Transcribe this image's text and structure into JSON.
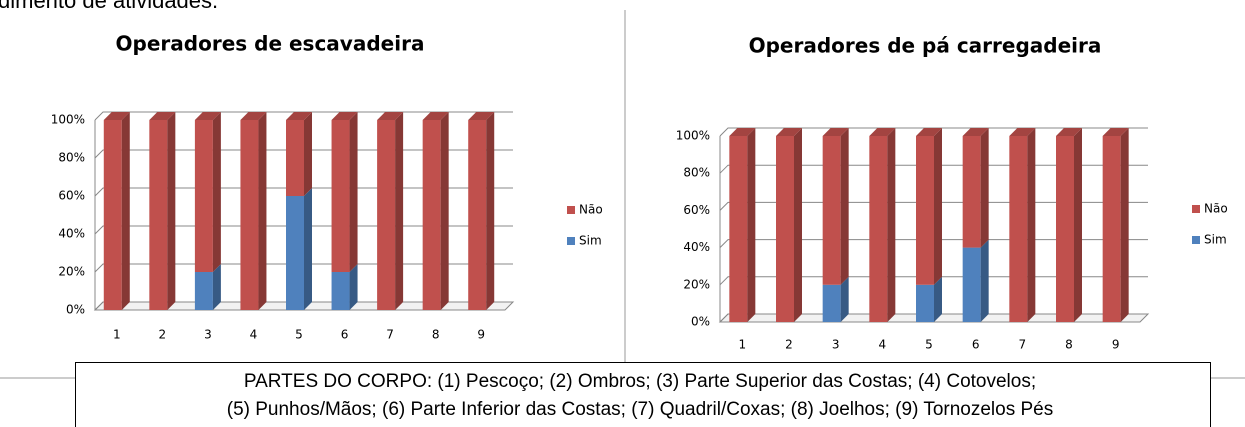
{
  "top_text": "dimento de atividades.",
  "chart_data": [
    {
      "type": "bar",
      "stacked": true,
      "title": "Operadores de escavadeira",
      "categories": [
        "1",
        "2",
        "3",
        "4",
        "5",
        "6",
        "7",
        "8",
        "9"
      ],
      "series": [
        {
          "name": "Sim",
          "color": "#4f81bd",
          "values": [
            0,
            0,
            20,
            0,
            60,
            20,
            0,
            0,
            0
          ]
        },
        {
          "name": "Não",
          "color": "#c0504d",
          "values": [
            100,
            100,
            80,
            100,
            40,
            80,
            100,
            100,
            100
          ]
        }
      ],
      "ylim": [
        0,
        100
      ],
      "yticks": [
        {
          "value": 0,
          "label": "0%"
        },
        {
          "value": 20,
          "label": "20%"
        },
        {
          "value": 40,
          "label": "40%"
        },
        {
          "value": 60,
          "label": "60%"
        },
        {
          "value": 80,
          "label": "80%"
        },
        {
          "value": 100,
          "label": "100%"
        }
      ],
      "grid": true,
      "legend": "right"
    },
    {
      "type": "bar",
      "stacked": true,
      "title": "Operadores de pá carregadeira",
      "categories": [
        "1",
        "2",
        "3",
        "4",
        "5",
        "6",
        "7",
        "8",
        "9"
      ],
      "series": [
        {
          "name": "Sim",
          "color": "#4f81bd",
          "values": [
            0,
            0,
            20,
            0,
            20,
            40,
            0,
            0,
            0
          ]
        },
        {
          "name": "Não",
          "color": "#c0504d",
          "values": [
            100,
            100,
            80,
            100,
            80,
            60,
            100,
            100,
            100
          ]
        }
      ],
      "ylim": [
        0,
        100
      ],
      "yticks": [
        {
          "value": 0,
          "label": "0%"
        },
        {
          "value": 20,
          "label": "20%"
        },
        {
          "value": 40,
          "label": "40%"
        },
        {
          "value": 60,
          "label": "60%"
        },
        {
          "value": 80,
          "label": "80%"
        },
        {
          "value": 100,
          "label": "100%"
        }
      ],
      "grid": true,
      "legend": "right"
    }
  ],
  "caption": {
    "lines": [
      "PARTES DO CORPO: (1) Pescoço; (2) Ombros; (3) Parte Superior das Costas; (4) Cotovelos;",
      "(5) Punhos/Mãos; (6) Parte Inferior das Costas; (7) Quadril/Coxas; (8) Joelhos; (9) Tornozelos Pés"
    ]
  }
}
